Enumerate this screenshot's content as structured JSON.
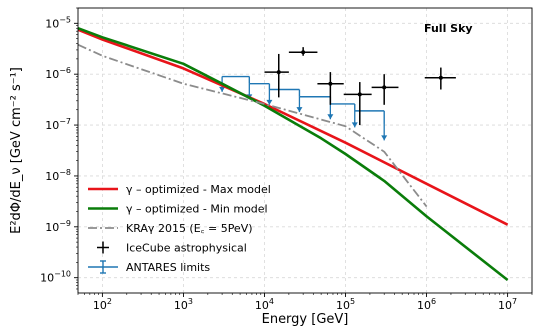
{
  "chart_data": {
    "type": "line",
    "title": "",
    "xlabel": "Energy [GeV]",
    "ylabel": "E²dΦ/dE_ν [GeV cm⁻² s⁻¹]",
    "xscale": "log",
    "yscale": "log",
    "xlim": [
      50,
      20000000
    ],
    "ylim": [
      5e-11,
      2e-05
    ],
    "grid": true,
    "legend_position": "lower-left",
    "annotation": "Full Sky",
    "x_ticks": [
      {
        "value": 100,
        "base": "10",
        "exp": "2"
      },
      {
        "value": 1000,
        "base": "10",
        "exp": "3"
      },
      {
        "value": 10000,
        "base": "10",
        "exp": "4"
      },
      {
        "value": 100000,
        "base": "10",
        "exp": "5"
      },
      {
        "value": 1000000,
        "base": "10",
        "exp": "6"
      },
      {
        "value": 10000000,
        "base": "10",
        "exp": "7"
      }
    ],
    "y_ticks": [
      {
        "value": 1e-10,
        "base": "10",
        "exp": "−10"
      },
      {
        "value": 1e-09,
        "base": "10",
        "exp": "−9"
      },
      {
        "value": 1e-08,
        "base": "10",
        "exp": "−8"
      },
      {
        "value": 1e-07,
        "base": "10",
        "exp": "−7"
      },
      {
        "value": 1e-06,
        "base": "10",
        "exp": "−6"
      },
      {
        "value": 1e-05,
        "base": "10",
        "exp": "−5"
      }
    ],
    "series": [
      {
        "name": "γ – optimized - Max model",
        "style": "solid",
        "color": "#e8141a",
        "x": [
          50,
          100,
          1000,
          10000,
          100000,
          1000000,
          10000000
        ],
        "y": [
          7.5e-06,
          4.8e-06,
          1.3e-06,
          2.6e-07,
          4.5e-08,
          7e-09,
          1.1e-09
        ]
      },
      {
        "name": "γ – optimized - Min model",
        "style": "solid",
        "color": "#0a7d0a",
        "x": [
          50,
          100,
          1000,
          3000,
          10000,
          50000,
          100000,
          300000,
          1000000,
          10000000
        ],
        "y": [
          8e-06,
          5.3e-06,
          1.6e-06,
          6.5e-07,
          2.4e-07,
          5.5e-08,
          2.7e-08,
          8e-09,
          1.6e-09,
          9e-11
        ]
      },
      {
        "name": "KRAγ 2015 (E꜀ = 5PeV)",
        "style": "dashdot",
        "color": "#8c8c8c",
        "x": [
          50,
          100,
          1000,
          10000,
          100000,
          300000,
          1000000
        ],
        "y": [
          3.8e-06,
          2.3e-06,
          6.5e-07,
          2.6e-07,
          9.5e-08,
          3e-08,
          2.5e-09
        ]
      }
    ],
    "icecube_points": {
      "name": "IceCube astrophysical",
      "color": "#000000",
      "points": [
        {
          "x": 15000,
          "y": 1.1e-06,
          "xlo": 10000,
          "xhi": 20000,
          "ylo": 3.5e-07,
          "yhi": 2.5e-06
        },
        {
          "x": 30000,
          "y": 2.7e-06,
          "xlo": 20000,
          "xhi": 45000,
          "ylo": 2.3e-06,
          "yhi": 3.4e-06
        },
        {
          "x": 65000,
          "y": 6.5e-07,
          "xlo": 45000,
          "xhi": 95000,
          "ylo": 2.5e-07,
          "yhi": 1.1e-06
        },
        {
          "x": 150000,
          "y": 4e-07,
          "xlo": 95000,
          "xhi": 210000,
          "ylo": 1e-07,
          "yhi": 7e-07
        },
        {
          "x": 300000,
          "y": 5.5e-07,
          "xlo": 210000,
          "xhi": 450000,
          "ylo": 2.5e-07,
          "yhi": 1e-06
        },
        {
          "x": 1500000,
          "y": 8.5e-07,
          "xlo": 950000,
          "xhi": 2300000,
          "ylo": 5e-07,
          "yhi": 1.35e-06
        }
      ]
    },
    "antares_limits": {
      "name": "ANTARES limits",
      "color": "#1f77b4",
      "segments": [
        {
          "xlo": 3000,
          "xhi": 6500,
          "y": 9e-07,
          "arrow_bottom": 4.5e-07
        },
        {
          "xlo": 6500,
          "xhi": 11500,
          "y": 6.5e-07,
          "arrow_bottom": 3.2e-07
        },
        {
          "xlo": 11500,
          "xhi": 27000,
          "y": 5e-07,
          "arrow_bottom": 2.5e-07
        },
        {
          "xlo": 27000,
          "xhi": 65000,
          "y": 3.6e-07,
          "arrow_bottom": 1.8e-07
        },
        {
          "xlo": 65000,
          "xhi": 130000,
          "y": 2.6e-07,
          "arrow_bottom": 1.3e-07
        },
        {
          "xlo": 130000,
          "xhi": 300000,
          "y": 1.9e-07,
          "arrow_bottom": 9e-08
        }
      ],
      "last_arrow": {
        "x": 300000,
        "y": 1.05e-07,
        "arrow_bottom": 5e-08
      }
    }
  }
}
